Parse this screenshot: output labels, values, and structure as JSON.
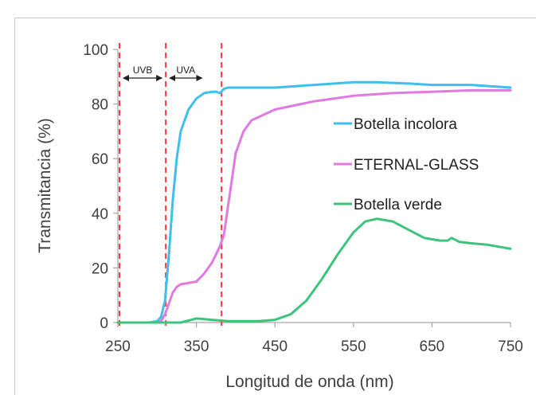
{
  "chart_data": {
    "type": "line",
    "title": "",
    "xlabel": "Longitud de onda (nm)",
    "ylabel": "Transmitancia (%)",
    "xlim": [
      250,
      750
    ],
    "ylim": [
      0,
      100
    ],
    "xticks": [
      250,
      350,
      450,
      550,
      650,
      750
    ],
    "yticks": [
      0,
      20,
      40,
      60,
      80,
      100
    ],
    "grid": false,
    "legend_position": "right",
    "series": [
      {
        "name": "Botella incolora",
        "color": "#3fbfef",
        "points": [
          [
            250,
            0
          ],
          [
            290,
            0
          ],
          [
            300,
            0.5
          ],
          [
            305,
            2
          ],
          [
            310,
            8
          ],
          [
            315,
            25
          ],
          [
            320,
            45
          ],
          [
            325,
            60
          ],
          [
            330,
            70
          ],
          [
            340,
            78
          ],
          [
            350,
            82
          ],
          [
            360,
            84
          ],
          [
            370,
            84.5
          ],
          [
            375,
            84.5
          ],
          [
            380,
            84
          ],
          [
            385,
            85.5
          ],
          [
            390,
            86
          ],
          [
            420,
            86
          ],
          [
            450,
            86
          ],
          [
            500,
            87
          ],
          [
            550,
            88
          ],
          [
            580,
            88
          ],
          [
            620,
            87.5
          ],
          [
            650,
            87
          ],
          [
            700,
            87
          ],
          [
            750,
            86
          ]
        ]
      },
      {
        "name": "ETERNAL-GLASS",
        "color": "#e07ae0",
        "points": [
          [
            250,
            0
          ],
          [
            300,
            0
          ],
          [
            305,
            0.5
          ],
          [
            310,
            3
          ],
          [
            315,
            7
          ],
          [
            320,
            11
          ],
          [
            325,
            13
          ],
          [
            330,
            14
          ],
          [
            340,
            14.5
          ],
          [
            350,
            15
          ],
          [
            360,
            18
          ],
          [
            370,
            22
          ],
          [
            375,
            25
          ],
          [
            380,
            28
          ],
          [
            385,
            32
          ],
          [
            390,
            42
          ],
          [
            395,
            52
          ],
          [
            400,
            62
          ],
          [
            410,
            70
          ],
          [
            420,
            74
          ],
          [
            450,
            78
          ],
          [
            500,
            81
          ],
          [
            550,
            83
          ],
          [
            600,
            84
          ],
          [
            650,
            84.5
          ],
          [
            700,
            85
          ],
          [
            750,
            85
          ]
        ]
      },
      {
        "name": "Botella verde",
        "color": "#3cc47a",
        "points": [
          [
            250,
            0
          ],
          [
            300,
            0
          ],
          [
            330,
            0
          ],
          [
            350,
            1.5
          ],
          [
            370,
            1
          ],
          [
            390,
            0.5
          ],
          [
            430,
            0.5
          ],
          [
            450,
            1
          ],
          [
            470,
            3
          ],
          [
            490,
            8
          ],
          [
            510,
            16
          ],
          [
            530,
            25
          ],
          [
            550,
            33
          ],
          [
            565,
            37
          ],
          [
            580,
            38
          ],
          [
            600,
            37
          ],
          [
            620,
            34
          ],
          [
            640,
            31
          ],
          [
            660,
            30
          ],
          [
            670,
            30
          ],
          [
            675,
            31
          ],
          [
            685,
            29.5
          ],
          [
            700,
            29
          ],
          [
            720,
            28.5
          ],
          [
            750,
            27
          ]
        ]
      }
    ],
    "vertical_lines": [
      252,
      311,
      382
    ],
    "bands": [
      {
        "label": "UVB",
        "from": 252,
        "to": 311
      },
      {
        "label": "UVA",
        "from": 311,
        "to": 362
      }
    ]
  },
  "colors": {
    "axis": "#a6a6a6",
    "text": "#404040",
    "marker": "#ff3b3b"
  }
}
